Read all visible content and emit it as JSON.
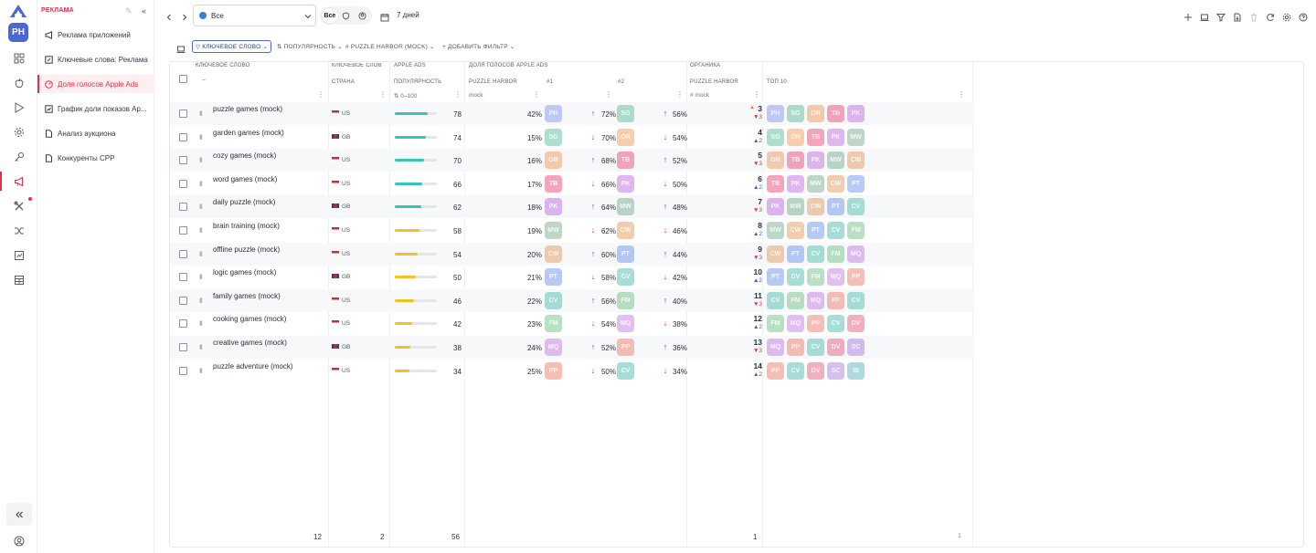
{
  "app": {
    "account_initials": "PH"
  },
  "sidebar": {
    "title": "РЕКЛАМА",
    "items": [
      {
        "label": "Реклама приложений",
        "icon": "megaphone-icon",
        "active": false
      },
      {
        "label": "Ключевые слова: Реклама",
        "icon": "edit-box-icon",
        "active": false
      },
      {
        "label": "Доля голосов Apple Ads",
        "icon": "gauge-icon",
        "active": true
      },
      {
        "label": "График доли показов Ap...",
        "icon": "chart-box-icon",
        "active": false
      },
      {
        "label": "Анализ аукциона",
        "icon": "document-icon",
        "active": false
      },
      {
        "label": "Конкуренты CPP",
        "icon": "document-icon",
        "active": false
      }
    ]
  },
  "toolbar": {
    "scope_value": "Все",
    "segments": [
      "Все",
      "shield",
      "person"
    ],
    "period": "7 дней"
  },
  "filters": [
    "Ключевое слово",
    "Популярность",
    "# Puzzle Harbor (mock)",
    "+ Добавить фильтр"
  ],
  "columns": {
    "keyword_group": "Ключевое слово",
    "keyword_sub": "–",
    "keyword_group2": "Ключевое слов",
    "country": "Страна",
    "apple_ads_group": "Apple Ads",
    "popularity": "Популярность",
    "popularity_filter": "0–100",
    "sov_group": "Доля голосов Apple Ads",
    "puzzle_harbor": "Puzzle Harbor",
    "sov_filter": "mock",
    "rank1": "#1",
    "rank2": "#2",
    "organic_group": "Органика",
    "organic_app": "Puzzle Harbor",
    "organic_filter": "# mock",
    "top10": "Топ 10"
  },
  "colors": {
    "PH": "#8fa3f0",
    "SG": "#6cc4a5",
    "OR": "#f3a46b",
    "TB": "#ee5b86",
    "PK": "#c57be3",
    "MW": "#86b59c",
    "CW": "#e6a56b",
    "PT": "#7d9ef0",
    "CV": "#5fc4b8",
    "FM": "#7ec98f",
    "MQ": "#c98be8",
    "PP": "#f08a7a",
    "DV": "#ea6f8e",
    "SC": "#b38be6",
    "IB": "#6cbcc5",
    "accent": "#4b67d1",
    "red": "#e0314b",
    "teal_bar": "#2fc8b4",
    "yellow_bar": "#f5c026"
  },
  "rows": [
    {
      "keyword": "puzzle games (mock)",
      "country": "US",
      "pop": 78,
      "sov": "42",
      "a1": "PH",
      "d1": "up",
      "p1": "72",
      "a2": "SG",
      "d2": "up",
      "p2": "56",
      "rank": "3",
      "delta": "3",
      "ddir": "down",
      "rankicon": true,
      "top": [
        "PH",
        "SG",
        "OR",
        "TB",
        "PK"
      ]
    },
    {
      "keyword": "garden games (mock)",
      "country": "GB",
      "pop": 74,
      "sov": "15",
      "a1": "SG",
      "d1": "down",
      "p1": "70",
      "a2": "OR",
      "d2": "down",
      "p2": "54",
      "rank": "4",
      "delta": "2",
      "ddir": "up",
      "top": [
        "SG",
        "OR",
        "TB",
        "PK",
        "MW"
      ]
    },
    {
      "keyword": "cozy games (mock)",
      "country": "US",
      "pop": 70,
      "sov": "16",
      "a1": "OR",
      "d1": "up",
      "p1": "68",
      "a2": "TB",
      "d2": "up",
      "p2": "52",
      "rank": "5",
      "delta": "3",
      "ddir": "down",
      "top": [
        "OR",
        "TB",
        "PK",
        "MW",
        "CW"
      ]
    },
    {
      "keyword": "word games (mock)",
      "country": "US",
      "pop": 66,
      "sov": "17",
      "a1": "TB",
      "d1": "down",
      "p1": "66",
      "a2": "PK",
      "d2": "down",
      "p2": "50",
      "rank": "6",
      "delta": "2",
      "ddir": "up",
      "top": [
        "TB",
        "PK",
        "MW",
        "CW",
        "PT"
      ]
    },
    {
      "keyword": "daily puzzle (mock)",
      "country": "GB",
      "pop": 62,
      "sov": "18",
      "a1": "PK",
      "d1": "up",
      "p1": "64",
      "a2": "MW",
      "d2": "up",
      "p2": "48",
      "rank": "7",
      "delta": "3",
      "ddir": "down",
      "top": [
        "PK",
        "MW",
        "CW",
        "PT",
        "CV"
      ]
    },
    {
      "keyword": "brain training (mock)",
      "country": "US",
      "pop": 58,
      "sov": "19",
      "a1": "MW",
      "d1": "down",
      "p1": "62",
      "a2": "CW",
      "d2": "down",
      "p2": "46",
      "rank": "8",
      "delta": "2",
      "ddir": "up",
      "top": [
        "MW",
        "CW",
        "PT",
        "CV",
        "FM"
      ]
    },
    {
      "keyword": "offline puzzle (mock)",
      "country": "US",
      "pop": 54,
      "sov": "20",
      "a1": "CW",
      "d1": "up",
      "p1": "60",
      "a2": "PT",
      "d2": "up",
      "p2": "44",
      "rank": "9",
      "delta": "3",
      "ddir": "down",
      "top": [
        "CW",
        "PT",
        "CV",
        "FM",
        "MQ"
      ]
    },
    {
      "keyword": "logic games (mock)",
      "country": "GB",
      "pop": 50,
      "sov": "21",
      "a1": "PT",
      "d1": "down",
      "p1": "58",
      "a2": "CV",
      "d2": "down",
      "p2": "42",
      "rank": "10",
      "delta": "2",
      "ddir": "up",
      "top": [
        "PT",
        "CV",
        "FM",
        "MQ",
        "PP"
      ]
    },
    {
      "keyword": "family games (mock)",
      "country": "US",
      "pop": 46,
      "sov": "22",
      "a1": "CV",
      "d1": "up",
      "p1": "56",
      "a2": "FM",
      "d2": "up",
      "p2": "40",
      "rank": "11",
      "delta": "3",
      "ddir": "down",
      "top": [
        "CV",
        "FM",
        "MQ",
        "PP",
        "CV"
      ]
    },
    {
      "keyword": "cooking games (mock)",
      "country": "US",
      "pop": 42,
      "sov": "23",
      "a1": "FM",
      "d1": "down",
      "p1": "54",
      "a2": "MQ",
      "d2": "down",
      "p2": "38",
      "rank": "12",
      "delta": "2",
      "ddir": "up",
      "top": [
        "FM",
        "MQ",
        "PP",
        "CV",
        "DV"
      ]
    },
    {
      "keyword": "creative games (mock)",
      "country": "GB",
      "pop": 38,
      "sov": "24",
      "a1": "MQ",
      "d1": "up",
      "p1": "52",
      "a2": "PP",
      "d2": "up",
      "p2": "36",
      "rank": "13",
      "delta": "3",
      "ddir": "down",
      "top": [
        "MQ",
        "PP",
        "CV",
        "DV",
        "SC"
      ]
    },
    {
      "keyword": "puzzle adventure (mock)",
      "country": "US",
      "pop": 34,
      "sov": "25",
      "a1": "PP",
      "d1": "down",
      "p1": "50",
      "a2": "CV",
      "d2": "down",
      "p2": "34",
      "rank": "14",
      "delta": "2",
      "ddir": "up",
      "top": [
        "PP",
        "CV",
        "DV",
        "SC",
        "IB"
      ]
    }
  ],
  "footer": {
    "keywords": "12",
    "countries": "2",
    "popularity": "56",
    "organic": "1",
    "top10": "1"
  }
}
